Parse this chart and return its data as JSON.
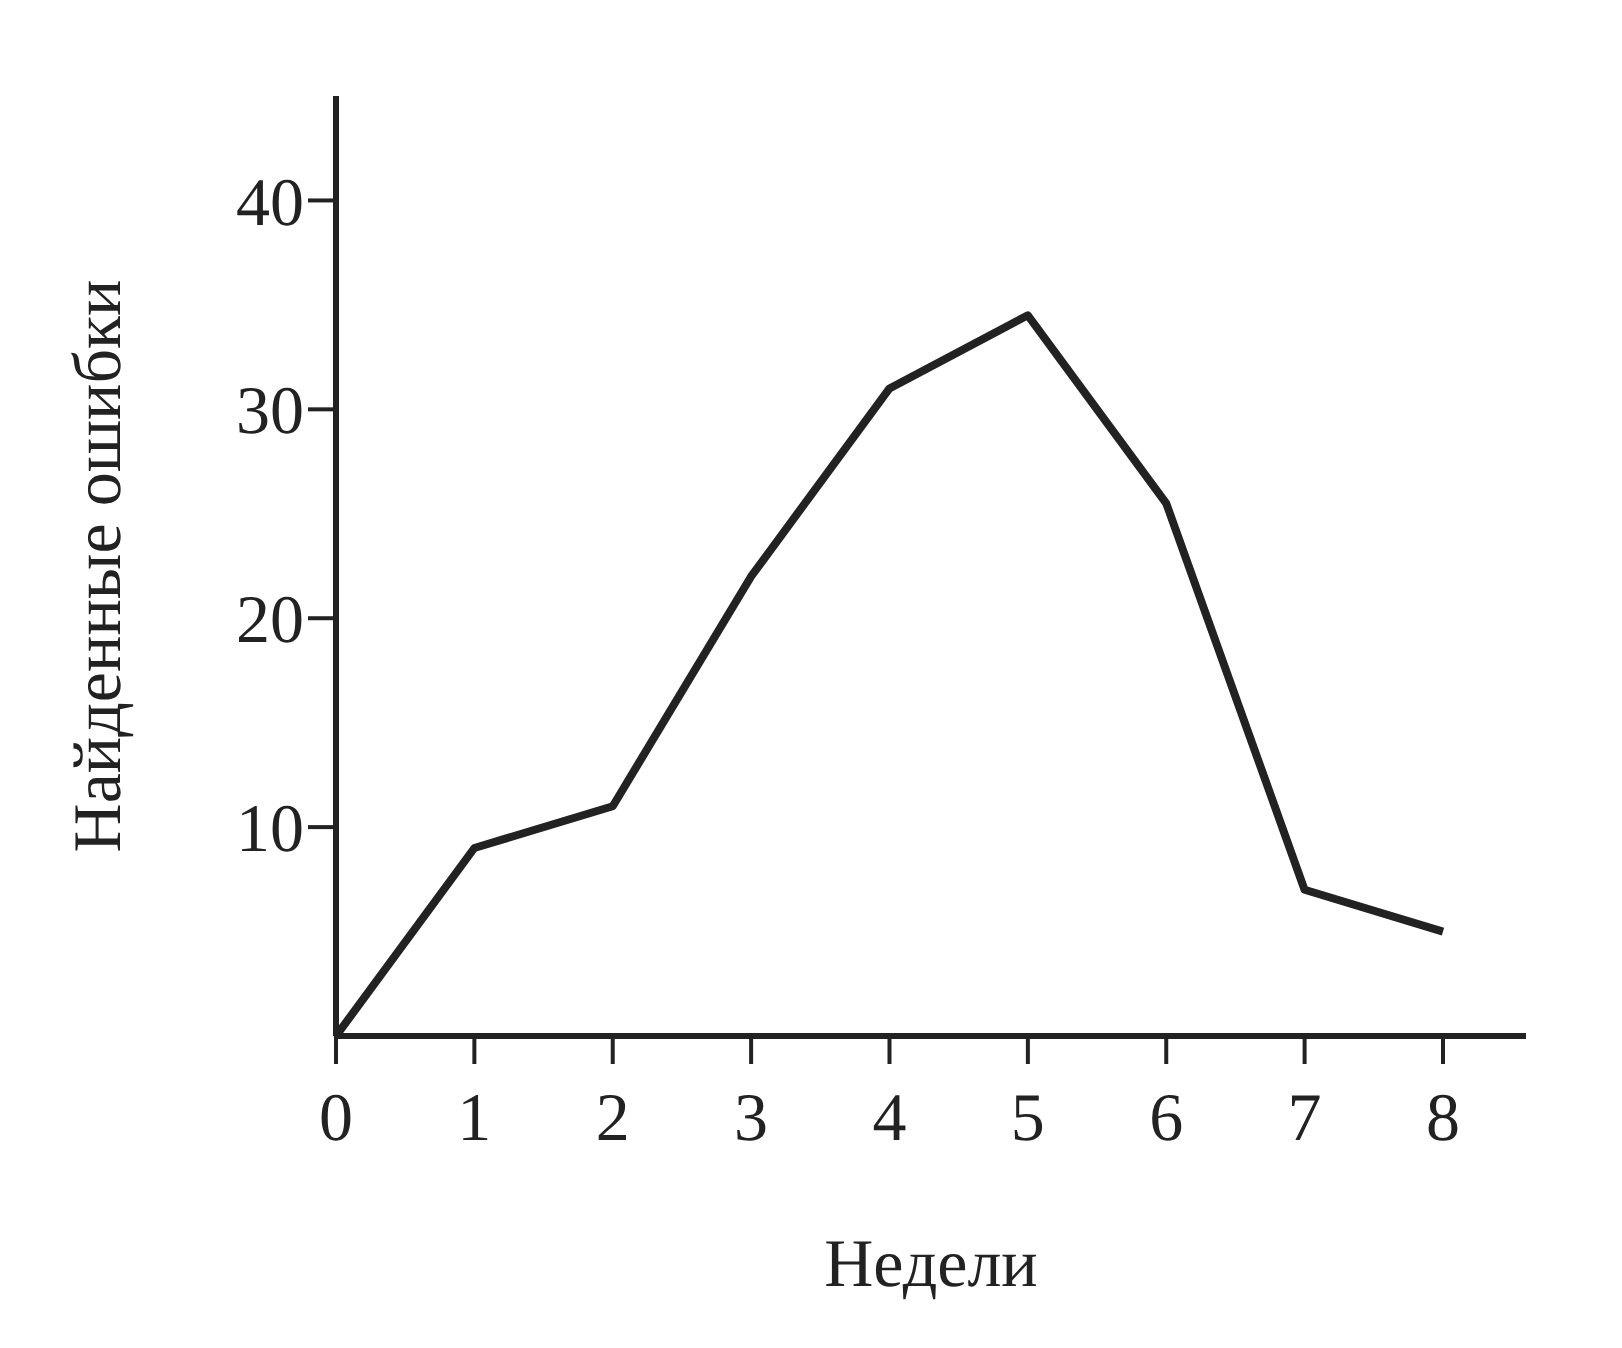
{
  "chart_data": {
    "type": "line",
    "xlabel": "Недели",
    "ylabel": "Найденные ошибки",
    "x": [
      0,
      1,
      2,
      3,
      4,
      5,
      6,
      7,
      8
    ],
    "series": [
      {
        "color": "#222222",
        "values": [
          0,
          9,
          11,
          22,
          31,
          34.5,
          25.5,
          7,
          5
        ]
      }
    ],
    "xlim": [
      0,
      8.6
    ],
    "xticks": [
      0,
      1,
      2,
      3,
      4,
      5,
      6,
      7,
      8
    ],
    "ylim": [
      0,
      45
    ],
    "yticks": [
      10,
      20,
      30,
      40
    ],
    "grid": false,
    "legend": false,
    "marker": "none",
    "line_style": "solid"
  }
}
